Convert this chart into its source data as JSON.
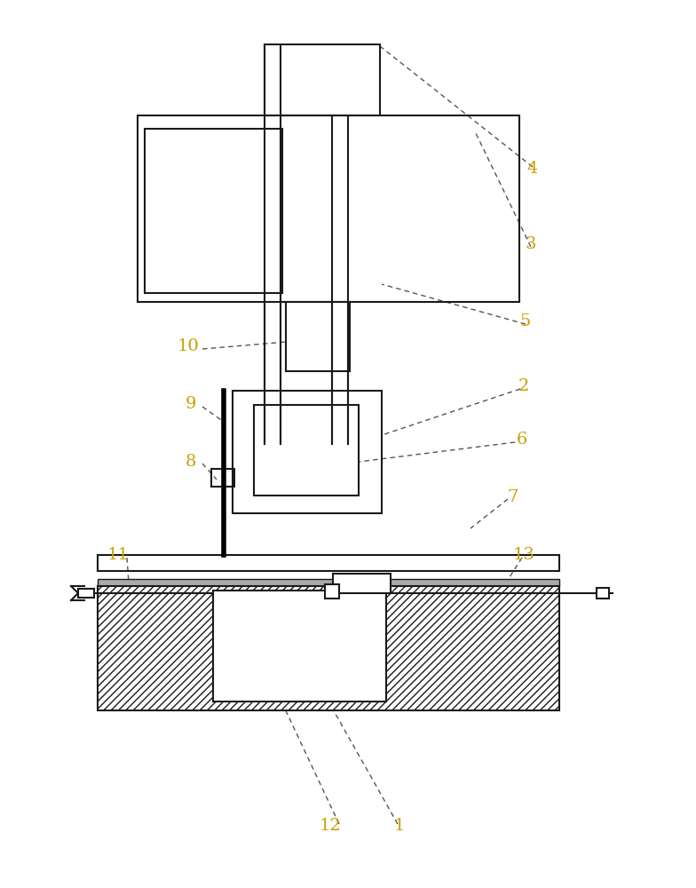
{
  "bg_color": "#ffffff",
  "line_color": "#1a1a1a",
  "label_color": "#c8a000",
  "fig_width": 7.84,
  "fig_height": 10.0
}
